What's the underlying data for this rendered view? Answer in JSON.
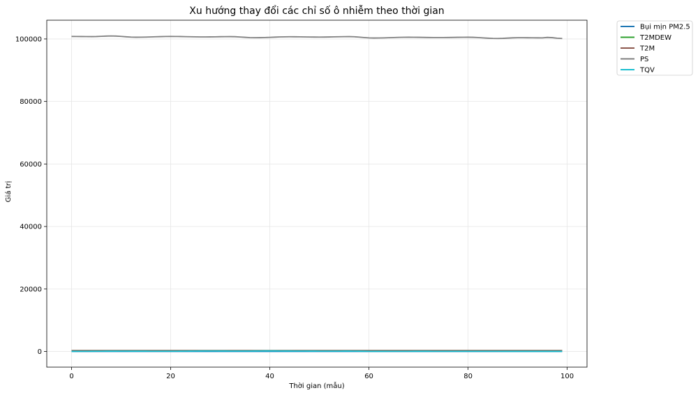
{
  "chart_data": {
    "type": "line",
    "title": "Xu hướng thay đổi các chỉ số ô nhiễm theo thời gian",
    "xlabel": "Thời gian (mẫu)",
    "ylabel": "Giá trị",
    "xlim": [
      -5,
      104
    ],
    "ylim": [
      -5000,
      106000
    ],
    "xticks": [
      0,
      20,
      40,
      60,
      80,
      100
    ],
    "yticks": [
      0,
      20000,
      40000,
      60000,
      80000,
      100000
    ],
    "grid": true,
    "legend_position": "outside-top-right",
    "series": [
      {
        "name": "Bụi mịn PM2.5",
        "color": "#1f77b4",
        "keypoints": [
          [
            0,
            25
          ],
          [
            99,
            25
          ]
        ]
      },
      {
        "name": "T2MDEW",
        "color": "#2ca02c",
        "keypoints": [
          [
            0,
            295
          ],
          [
            99,
            295
          ]
        ]
      },
      {
        "name": "T2M",
        "color": "#8c564b",
        "keypoints": [
          [
            0,
            300
          ],
          [
            99,
            300
          ]
        ]
      },
      {
        "name": "PS",
        "color": "#7f7f7f",
        "keypoints": [
          [
            0,
            100800
          ],
          [
            4,
            100750
          ],
          [
            8,
            100950
          ],
          [
            13,
            100550
          ],
          [
            20,
            100800
          ],
          [
            27,
            100650
          ],
          [
            32,
            100750
          ],
          [
            37,
            100400
          ],
          [
            44,
            100700
          ],
          [
            50,
            100600
          ],
          [
            56,
            100750
          ],
          [
            61,
            100300
          ],
          [
            68,
            100550
          ],
          [
            74,
            100450
          ],
          [
            80,
            100550
          ],
          [
            86,
            100150
          ],
          [
            90,
            100400
          ],
          [
            95,
            100350
          ],
          [
            96,
            100500
          ],
          [
            99,
            100150
          ]
        ]
      },
      {
        "name": "TQV",
        "color": "#17becf",
        "keypoints": [
          [
            0,
            60
          ],
          [
            10,
            120
          ],
          [
            20,
            100
          ],
          [
            28,
            180
          ],
          [
            35,
            150
          ],
          [
            40,
            200
          ],
          [
            45,
            160
          ],
          [
            52,
            120
          ],
          [
            56,
            140
          ],
          [
            61,
            60
          ],
          [
            70,
            80
          ],
          [
            80,
            70
          ],
          [
            90,
            60
          ],
          [
            99,
            60
          ]
        ]
      }
    ]
  }
}
